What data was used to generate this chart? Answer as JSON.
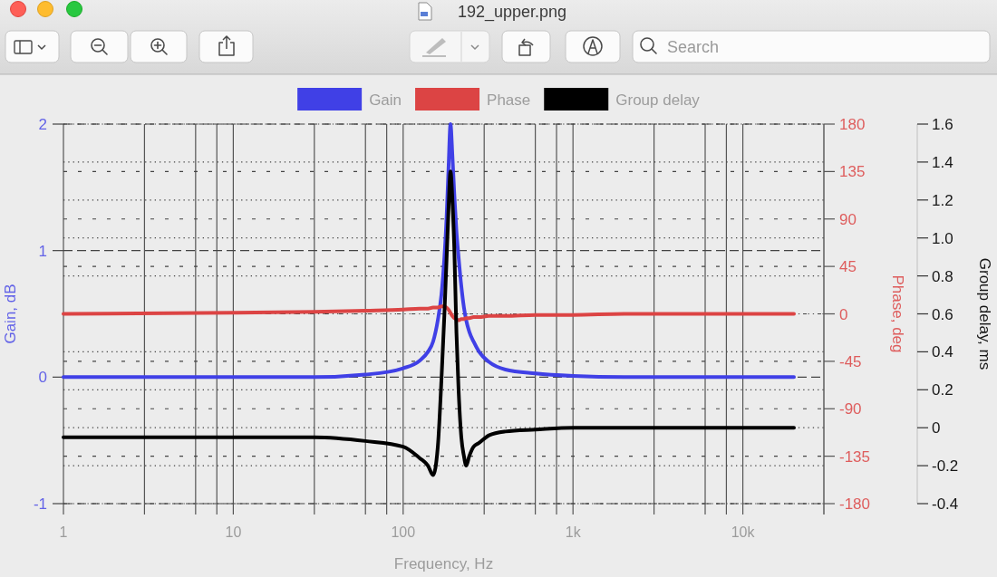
{
  "chart_data": {
    "type": "line",
    "title": "192_upper.png",
    "xlabel": "Frequency, Hz",
    "ylabel": "Gain, dB",
    "y2label": "Phase, deg",
    "y3label": "Group delay, ms",
    "annotations": [
      "Search"
    ],
    "log": "x",
    "x": [
      1,
      10,
      30,
      60,
      100,
      125,
      140,
      150,
      160,
      168,
      175,
      180,
      185,
      190,
      195,
      200,
      206,
      212,
      220,
      228,
      235,
      245,
      260,
      280,
      320,
      400,
      600,
      1000,
      2000,
      5000,
      10000,
      20000
    ],
    "xlim": [
      1,
      30000
    ],
    "xticks": [
      1,
      {
        "value": 3,
        "label": null
      },
      {
        "value": 6,
        "label": null
      },
      {
        "value": 8,
        "label": null
      },
      10,
      {
        "value": 30,
        "label": null
      },
      {
        "value": 60,
        "label": null
      },
      {
        "value": 80,
        "label": null
      },
      100,
      {
        "value": 300,
        "label": null
      },
      {
        "value": 600,
        "label": null
      },
      {
        "value": 800,
        "label": null
      },
      {
        "value": 1000,
        "label": "1k"
      },
      {
        "value": 3000,
        "label": null
      },
      {
        "value": 6000,
        "label": null
      },
      {
        "value": 8000,
        "label": null
      },
      {
        "value": 10000,
        "label": "10k"
      }
    ],
    "ylim": [
      -1,
      2
    ],
    "yticks": [
      -1,
      0,
      1,
      2
    ],
    "y2lim": [
      -180,
      180
    ],
    "y2ticks": [
      -180,
      -135,
      -90,
      -45,
      0,
      45,
      90,
      135,
      180
    ],
    "y3lim": [
      -0.4,
      1.6
    ],
    "y3ticks": [
      -0.4,
      -0.2,
      0,
      0.2,
      0.4,
      0.6,
      0.8,
      {
        "value": 1,
        "label": "1.0"
      },
      1.2,
      1.4,
      1.6
    ],
    "grid": true,
    "legend": "top",
    "series": [
      {
        "name": "Gain",
        "color": "#4040e6",
        "values": [
          0,
          0,
          0,
          0.02,
          0.07,
          0.13,
          0.2,
          0.28,
          0.45,
          0.65,
          0.95,
          1.25,
          1.65,
          2.0,
          1.75,
          1.45,
          1.15,
          0.95,
          0.72,
          0.55,
          0.45,
          0.36,
          0.28,
          0.2,
          0.12,
          0.06,
          0.03,
          0.01,
          0,
          0,
          0,
          0
        ]
      },
      {
        "name": "Phase",
        "color": "#dc4444",
        "axis": "y2",
        "values": [
          0,
          1,
          2,
          3,
          4,
          5,
          5,
          6,
          6,
          7,
          7,
          6,
          4,
          1,
          -2,
          -4,
          -5,
          -6,
          -5,
          -5,
          -4,
          -4,
          -3,
          -3,
          -2,
          -2,
          -1,
          -1,
          0,
          0,
          0,
          0
        ]
      },
      {
        "name": "Group delay",
        "color": "#000000",
        "axis": "y3",
        "values": [
          -0.05,
          -0.05,
          -0.05,
          -0.07,
          -0.1,
          -0.16,
          -0.2,
          -0.25,
          -0.1,
          0.25,
          0.6,
          0.88,
          1.15,
          1.35,
          1.2,
          0.95,
          0.5,
          0.2,
          -0.05,
          -0.15,
          -0.2,
          -0.15,
          -0.1,
          -0.08,
          -0.04,
          -0.02,
          -0.01,
          0,
          0,
          0,
          0,
          0
        ]
      }
    ]
  }
}
